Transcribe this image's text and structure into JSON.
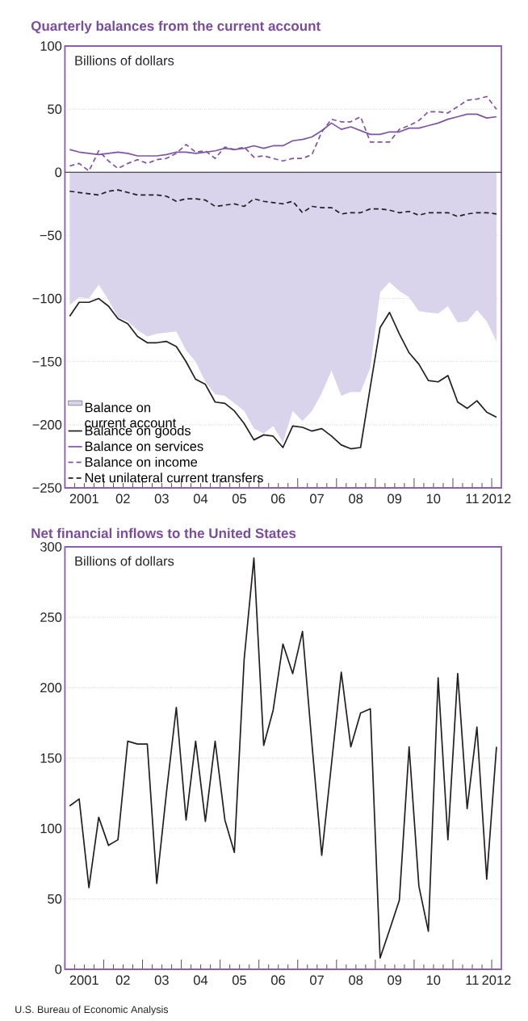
{
  "chart_data": [
    {
      "type": "line",
      "title": "Quarterly balances from the current account",
      "ylabel": "Billions of dollars",
      "x": [
        "2001-02-15",
        "2001-05-15",
        "2001-08-15",
        "2001-11-15",
        "2002-02-15",
        "2002-05-15",
        "2002-08-15",
        "2002-11-15",
        "2003-02-15",
        "2003-05-15",
        "2003-08-15",
        "2003-11-15",
        "2004-02-15",
        "2004-05-15",
        "2004-08-15",
        "2004-11-15",
        "2005-02-15",
        "2005-05-15",
        "2005-08-15",
        "2005-11-15",
        "2006-02-15",
        "2006-05-15",
        "2006-08-15",
        "2006-11-15",
        "2007-02-15",
        "2007-05-15",
        "2007-08-15",
        "2007-11-15",
        "2008-02-15",
        "2008-05-15",
        "2008-08-15",
        "2008-11-15",
        "2009-02-15",
        "2009-05-15",
        "2009-08-15",
        "2009-11-15",
        "2010-02-15",
        "2010-05-15",
        "2010-08-15",
        "2010-11-15",
        "2011-02-15",
        "2011-05-15",
        "2011-08-15",
        "2011-11-15",
        "2012-02-15"
      ],
      "series": [
        {
          "name": "Balance on current account",
          "type": "area",
          "color": "#d9d4ec",
          "values": [
            -105,
            -99,
            -100,
            -89,
            -101,
            -115,
            -118,
            -125,
            -130,
            -128,
            -127,
            -126,
            -141,
            -150,
            -166,
            -176,
            -177,
            -183,
            -189,
            -203,
            -207,
            -201,
            -214,
            -189,
            -197,
            -189,
            -175,
            -157,
            -177,
            -174,
            -174,
            -155,
            -95,
            -87,
            -94,
            -99,
            -110,
            -111,
            -112,
            -106,
            -119,
            -118,
            -109,
            -118,
            -134
          ]
        },
        {
          "name": "Balance on goods",
          "color": "#231f20",
          "line_style": "solid",
          "values": [
            -114,
            -103,
            -103,
            -100,
            -106,
            -116,
            -120,
            -130,
            -135,
            -135,
            -134,
            -138,
            -150,
            -164,
            -168,
            -182,
            -183,
            -189,
            -199,
            -212,
            -208,
            -209,
            -218,
            -201,
            -202,
            -205,
            -203,
            -209,
            -216,
            -219,
            -218,
            -170,
            -123,
            -111,
            -128,
            -143,
            -152,
            -165,
            -166,
            -161,
            -182,
            -187,
            -181,
            -190,
            -194
          ]
        },
        {
          "name": "Balance on services",
          "color": "#7d55a3",
          "line_style": "solid",
          "values": [
            18,
            16,
            15,
            14,
            15,
            16,
            15,
            13,
            13,
            13,
            14,
            16,
            16,
            15,
            16,
            17,
            19,
            18,
            19,
            21,
            19,
            21,
            21,
            25,
            26,
            28,
            33,
            39,
            34,
            36,
            33,
            30,
            30,
            32,
            32,
            35,
            35,
            37,
            39,
            42,
            44,
            46,
            46,
            43,
            44
          ]
        },
        {
          "name": "Balance on income",
          "color": "#7d55a3",
          "line_style": "dashed",
          "values": [
            5,
            7,
            1,
            17,
            9,
            3,
            7,
            10,
            7,
            10,
            11,
            15,
            22,
            16,
            17,
            11,
            20,
            18,
            20,
            12,
            13,
            11,
            9,
            11,
            11,
            14,
            32,
            42,
            40,
            40,
            44,
            24,
            24,
            24,
            34,
            37,
            41,
            48,
            48,
            47,
            52,
            57,
            58,
            60,
            50
          ]
        },
        {
          "name": "Net unilateral current transfers",
          "color": "#231f20",
          "line_style": "dashed",
          "values": [
            -15,
            -16,
            -17,
            -18,
            -15,
            -14,
            -16,
            -18,
            -18,
            -18,
            -19,
            -23,
            -21,
            -21,
            -22,
            -27,
            -26,
            -25,
            -27,
            -21,
            -23,
            -24,
            -25,
            -23,
            -32,
            -27,
            -28,
            -28,
            -33,
            -32,
            -32,
            -29,
            -29,
            -30,
            -32,
            -31,
            -34,
            -32,
            -32,
            -32,
            -35,
            -33,
            -32,
            -32,
            -33
          ]
        }
      ],
      "xlim": [
        "2001-01-01",
        "2012-04-01"
      ],
      "ylim": [
        -250,
        100
      ],
      "xticks": [
        {
          "value": "2001-01-01",
          "label": null
        },
        {
          "value": "2002-01-01",
          "label": null
        },
        {
          "value": "2003-01-01",
          "label": null
        },
        {
          "value": "2004-01-01",
          "label": null
        },
        {
          "value": "2005-01-01",
          "label": null
        },
        {
          "value": "2006-01-01",
          "label": null
        },
        {
          "value": "2007-01-01",
          "label": null
        },
        {
          "value": "2008-01-01",
          "label": null
        },
        {
          "value": "2009-01-01",
          "label": null
        },
        {
          "value": "2010-01-01",
          "label": null
        },
        {
          "value": "2011-01-01",
          "label": null
        },
        {
          "value": "2012-01-01",
          "label": null
        },
        {
          "value": "2001-07-01",
          "label": "2001"
        },
        {
          "value": "2002-07-01",
          "label": "02"
        },
        {
          "value": "2003-07-01",
          "label": "03"
        },
        {
          "value": "2004-07-01",
          "label": "04"
        },
        {
          "value": "2005-07-01",
          "label": "05"
        },
        {
          "value": "2006-07-01",
          "label": "06"
        },
        {
          "value": "2007-07-01",
          "label": "07"
        },
        {
          "value": "2008-07-01",
          "label": "08"
        },
        {
          "value": "2009-07-01",
          "label": "09"
        },
        {
          "value": "2010-07-01",
          "label": "10"
        },
        {
          "value": "2011-07-01",
          "label": "11"
        },
        {
          "value": "2012-02-15",
          "label": "2012"
        }
      ],
      "yticks": [
        {
          "value": -250,
          "label": "−250"
        },
        {
          "value": -200,
          "label": "−200"
        },
        {
          "value": -150,
          "label": "−150"
        },
        {
          "value": -100,
          "label": "−100"
        },
        {
          "value": -50,
          "label": "−50"
        },
        0,
        50,
        100
      ],
      "grid": "y",
      "legend": "bottom left",
      "ref_lines": [
        {
          "axis": "y",
          "value": 0,
          "color": "#231f20"
        }
      ]
    },
    {
      "type": "line",
      "title": "Net financial inflows to the United States",
      "ylabel": "Billions of dollars",
      "x": [
        "2001-02-15",
        "2001-05-15",
        "2001-08-15",
        "2001-11-15",
        "2002-02-15",
        "2002-05-15",
        "2002-08-15",
        "2002-11-15",
        "2003-02-15",
        "2003-05-15",
        "2003-08-15",
        "2003-11-15",
        "2004-02-15",
        "2004-05-15",
        "2004-08-15",
        "2004-11-15",
        "2005-02-15",
        "2005-05-15",
        "2005-08-15",
        "2005-11-15",
        "2006-02-15",
        "2006-05-15",
        "2006-08-15",
        "2006-11-15",
        "2007-02-15",
        "2007-05-15",
        "2007-08-15",
        "2007-11-15",
        "2008-02-15",
        "2008-05-15",
        "2008-08-15",
        "2008-11-15",
        "2009-02-15",
        "2009-05-15",
        "2009-08-15",
        "2009-11-15",
        "2010-02-15",
        "2010-05-15",
        "2010-08-15",
        "2010-11-15",
        "2011-02-15",
        "2011-05-15",
        "2011-08-15",
        "2011-11-15",
        "2012-02-15"
      ],
      "series": [
        {
          "color": "#231f20",
          "line_style": "solid",
          "values": [
            116,
            121,
            58,
            108,
            88,
            92,
            162,
            160,
            160,
            61,
            126,
            186,
            106,
            162,
            105,
            162,
            106,
            83,
            220,
            292,
            159,
            184,
            231,
            210,
            240,
            160,
            81,
            146,
            211,
            158,
            182,
            185,
            8,
            28,
            49,
            158,
            59,
            27,
            207,
            92,
            210,
            114,
            172,
            64,
            158
          ]
        }
      ],
      "xlim": [
        "2001-01-01",
        "2012-04-01"
      ],
      "ylim": [
        0,
        300
      ],
      "xticks": [
        {
          "value": "2001-01-01",
          "label": null
        },
        {
          "value": "2002-01-01",
          "label": null
        },
        {
          "value": "2003-01-01",
          "label": null
        },
        {
          "value": "2004-01-01",
          "label": null
        },
        {
          "value": "2005-01-01",
          "label": null
        },
        {
          "value": "2006-01-01",
          "label": null
        },
        {
          "value": "2007-01-01",
          "label": null
        },
        {
          "value": "2008-01-01",
          "label": null
        },
        {
          "value": "2009-01-01",
          "label": null
        },
        {
          "value": "2010-01-01",
          "label": null
        },
        {
          "value": "2011-01-01",
          "label": null
        },
        {
          "value": "2012-01-01",
          "label": null
        },
        {
          "value": "2001-07-01",
          "label": "2001"
        },
        {
          "value": "2002-07-01",
          "label": "02"
        },
        {
          "value": "2003-07-01",
          "label": "03"
        },
        {
          "value": "2004-07-01",
          "label": "04"
        },
        {
          "value": "2005-07-01",
          "label": "05"
        },
        {
          "value": "2006-07-01",
          "label": "06"
        },
        {
          "value": "2007-07-01",
          "label": "07"
        },
        {
          "value": "2008-07-01",
          "label": "08"
        },
        {
          "value": "2009-07-01",
          "label": "09"
        },
        {
          "value": "2010-07-01",
          "label": "10"
        },
        {
          "value": "2011-07-01",
          "label": "11"
        },
        {
          "value": "2012-02-15",
          "label": "2012"
        }
      ],
      "yticks": [
        0,
        50,
        100,
        150,
        200,
        250,
        300
      ],
      "grid": "y",
      "annotations": [
        "U.S. Bureau of Economic Analysis"
      ]
    }
  ]
}
